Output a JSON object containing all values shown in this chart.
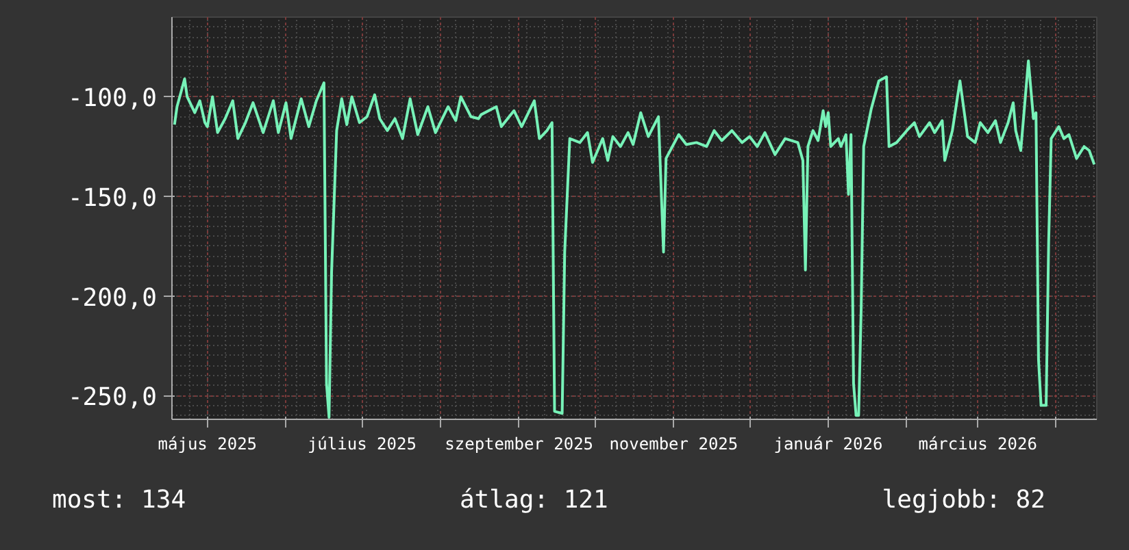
{
  "chart_data": {
    "type": "line",
    "grid": true,
    "xlim": [
      "2025-04-17",
      "2026-04-17"
    ],
    "xticks": [
      {
        "value": "2025-05-01",
        "label": "május 2025"
      },
      {
        "value": "2025-06-01",
        "label": null
      },
      {
        "value": "2025-07-01",
        "label": "július 2025"
      },
      {
        "value": "2025-08-01",
        "label": null
      },
      {
        "value": "2025-09-01",
        "label": "szeptember 2025"
      },
      {
        "value": "2025-10-01",
        "label": null
      },
      {
        "value": "2025-11-01",
        "label": "november 2025"
      },
      {
        "value": "2025-12-01",
        "label": null
      },
      {
        "value": "2026-01-01",
        "label": "január 2026"
      },
      {
        "value": "2026-02-01",
        "label": null
      },
      {
        "value": "2026-03-01",
        "label": "március 2026"
      },
      {
        "value": "2026-04-01",
        "label": null
      }
    ],
    "ylim": [
      -262,
      -60
    ],
    "yticks": [
      {
        "value": -100,
        "label": "-100,0"
      },
      {
        "value": -150,
        "label": "-150,0"
      },
      {
        "value": -200,
        "label": "-200,0"
      },
      {
        "value": -250,
        "label": "-250,0"
      }
    ],
    "annotations": [
      "most: 134",
      "átlag: 121",
      "legjobb: 82"
    ],
    "series": [
      {
        "color": "#77f2b8",
        "x": [
          "2025-04-18",
          "2025-04-19",
          "2025-04-22",
          "2025-04-23",
          "2025-04-26",
          "2025-04-28",
          "2025-04-30",
          "2025-05-01",
          "2025-05-03",
          "2025-05-05",
          "2025-05-08",
          "2025-05-11",
          "2025-05-13",
          "2025-05-16",
          "2025-05-19",
          "2025-05-23",
          "2025-05-27",
          "2025-05-29",
          "2025-06-01",
          "2025-06-03",
          "2025-06-07",
          "2025-06-10",
          "2025-06-13",
          "2025-06-16",
          "2025-06-17",
          "2025-06-18",
          "2025-06-19",
          "2025-06-21",
          "2025-06-23",
          "2025-06-25",
          "2025-06-27",
          "2025-06-30",
          "2025-07-03",
          "2025-07-06",
          "2025-07-08",
          "2025-07-11",
          "2025-07-14",
          "2025-07-17",
          "2025-07-20",
          "2025-07-23",
          "2025-07-27",
          "2025-07-30",
          "2025-08-04",
          "2025-08-07",
          "2025-08-09",
          "2025-08-13",
          "2025-08-16",
          "2025-08-17",
          "2025-08-23",
          "2025-08-25",
          "2025-08-30",
          "2025-09-02",
          "2025-09-07",
          "2025-09-09",
          "2025-09-12",
          "2025-09-14",
          "2025-09-15",
          "2025-09-18",
          "2025-09-19",
          "2025-09-21",
          "2025-09-25",
          "2025-09-28",
          "2025-09-30",
          "2025-10-04",
          "2025-10-06",
          "2025-10-08",
          "2025-10-11",
          "2025-10-14",
          "2025-10-16",
          "2025-10-19",
          "2025-10-22",
          "2025-10-26",
          "2025-10-28",
          "2025-10-29",
          "2025-11-03",
          "2025-11-06",
          "2025-11-10",
          "2025-11-14",
          "2025-11-17",
          "2025-11-20",
          "2025-11-24",
          "2025-11-28",
          "2025-12-01",
          "2025-12-04",
          "2025-12-07",
          "2025-12-11",
          "2025-12-15",
          "2025-12-20",
          "2025-12-22",
          "2025-12-23",
          "2025-12-24",
          "2025-12-26",
          "2025-12-28",
          "2025-12-30",
          "2025-12-31",
          "2026-01-01",
          "2026-01-02",
          "2026-01-05",
          "2026-01-06",
          "2026-01-08",
          "2026-01-09",
          "2026-01-10",
          "2026-01-11",
          "2026-01-12",
          "2026-01-13",
          "2026-01-14",
          "2026-01-15",
          "2026-01-18",
          "2026-01-21",
          "2026-01-24",
          "2026-01-25",
          "2026-01-28",
          "2026-02-01",
          "2026-02-04",
          "2026-02-06",
          "2026-02-10",
          "2026-02-12",
          "2026-02-15",
          "2026-02-16",
          "2026-02-19",
          "2026-02-22",
          "2026-02-25",
          "2026-02-28",
          "2026-03-02",
          "2026-03-05",
          "2026-03-08",
          "2026-03-10",
          "2026-03-13",
          "2026-03-15",
          "2026-03-16",
          "2026-03-18",
          "2026-03-21",
          "2026-03-23",
          "2026-03-24",
          "2026-03-25",
          "2026-03-26",
          "2026-03-28",
          "2026-03-29",
          "2026-03-30",
          "2026-04-02",
          "2026-04-04",
          "2026-04-06",
          "2026-04-09",
          "2026-04-12",
          "2026-04-14",
          "2026-04-16"
        ],
        "values": [
          -114,
          -105,
          -91,
          -100,
          -108,
          -102,
          -113,
          -115,
          -100,
          -118,
          -111,
          -102,
          -121,
          -113,
          -103,
          -118,
          -102,
          -118,
          -103,
          -121,
          -101,
          -115,
          -102,
          -93,
          -244,
          -261,
          -188,
          -117,
          -101,
          -114,
          -100,
          -113,
          -110,
          -99,
          -111,
          -117,
          -111,
          -121,
          -101,
          -119,
          -105,
          -118,
          -105,
          -112,
          -100,
          -110,
          -111,
          -109,
          -105,
          -115,
          -107,
          -115,
          -102,
          -121,
          -117,
          -113,
          -258,
          -259,
          -178,
          -121,
          -123,
          -118,
          -133,
          -121,
          -132,
          -120,
          -125,
          -118,
          -124,
          -108,
          -120,
          -110,
          -178,
          -131,
          -119,
          -124,
          -123,
          -125,
          -117,
          -122,
          -117,
          -123,
          -120,
          -125,
          -118,
          -129,
          -121,
          -123,
          -132,
          -187,
          -125,
          -117,
          -122,
          -107,
          -115,
          -108,
          -125,
          -121,
          -125,
          -119,
          -149,
          -119,
          -244,
          -260,
          -260,
          -207,
          -125,
          -106,
          -92,
          -90,
          -125,
          -123,
          -117,
          -113,
          -120,
          -113,
          -118,
          -112,
          -132,
          -117,
          -92,
          -120,
          -123,
          -113,
          -118,
          -112,
          -123,
          -113,
          -103,
          -117,
          -127,
          -82,
          -111,
          -108,
          -232,
          -255,
          -255,
          -173,
          -121,
          -115,
          -121,
          -119,
          -131,
          -125,
          -127,
          -134
        ]
      }
    ]
  }
}
